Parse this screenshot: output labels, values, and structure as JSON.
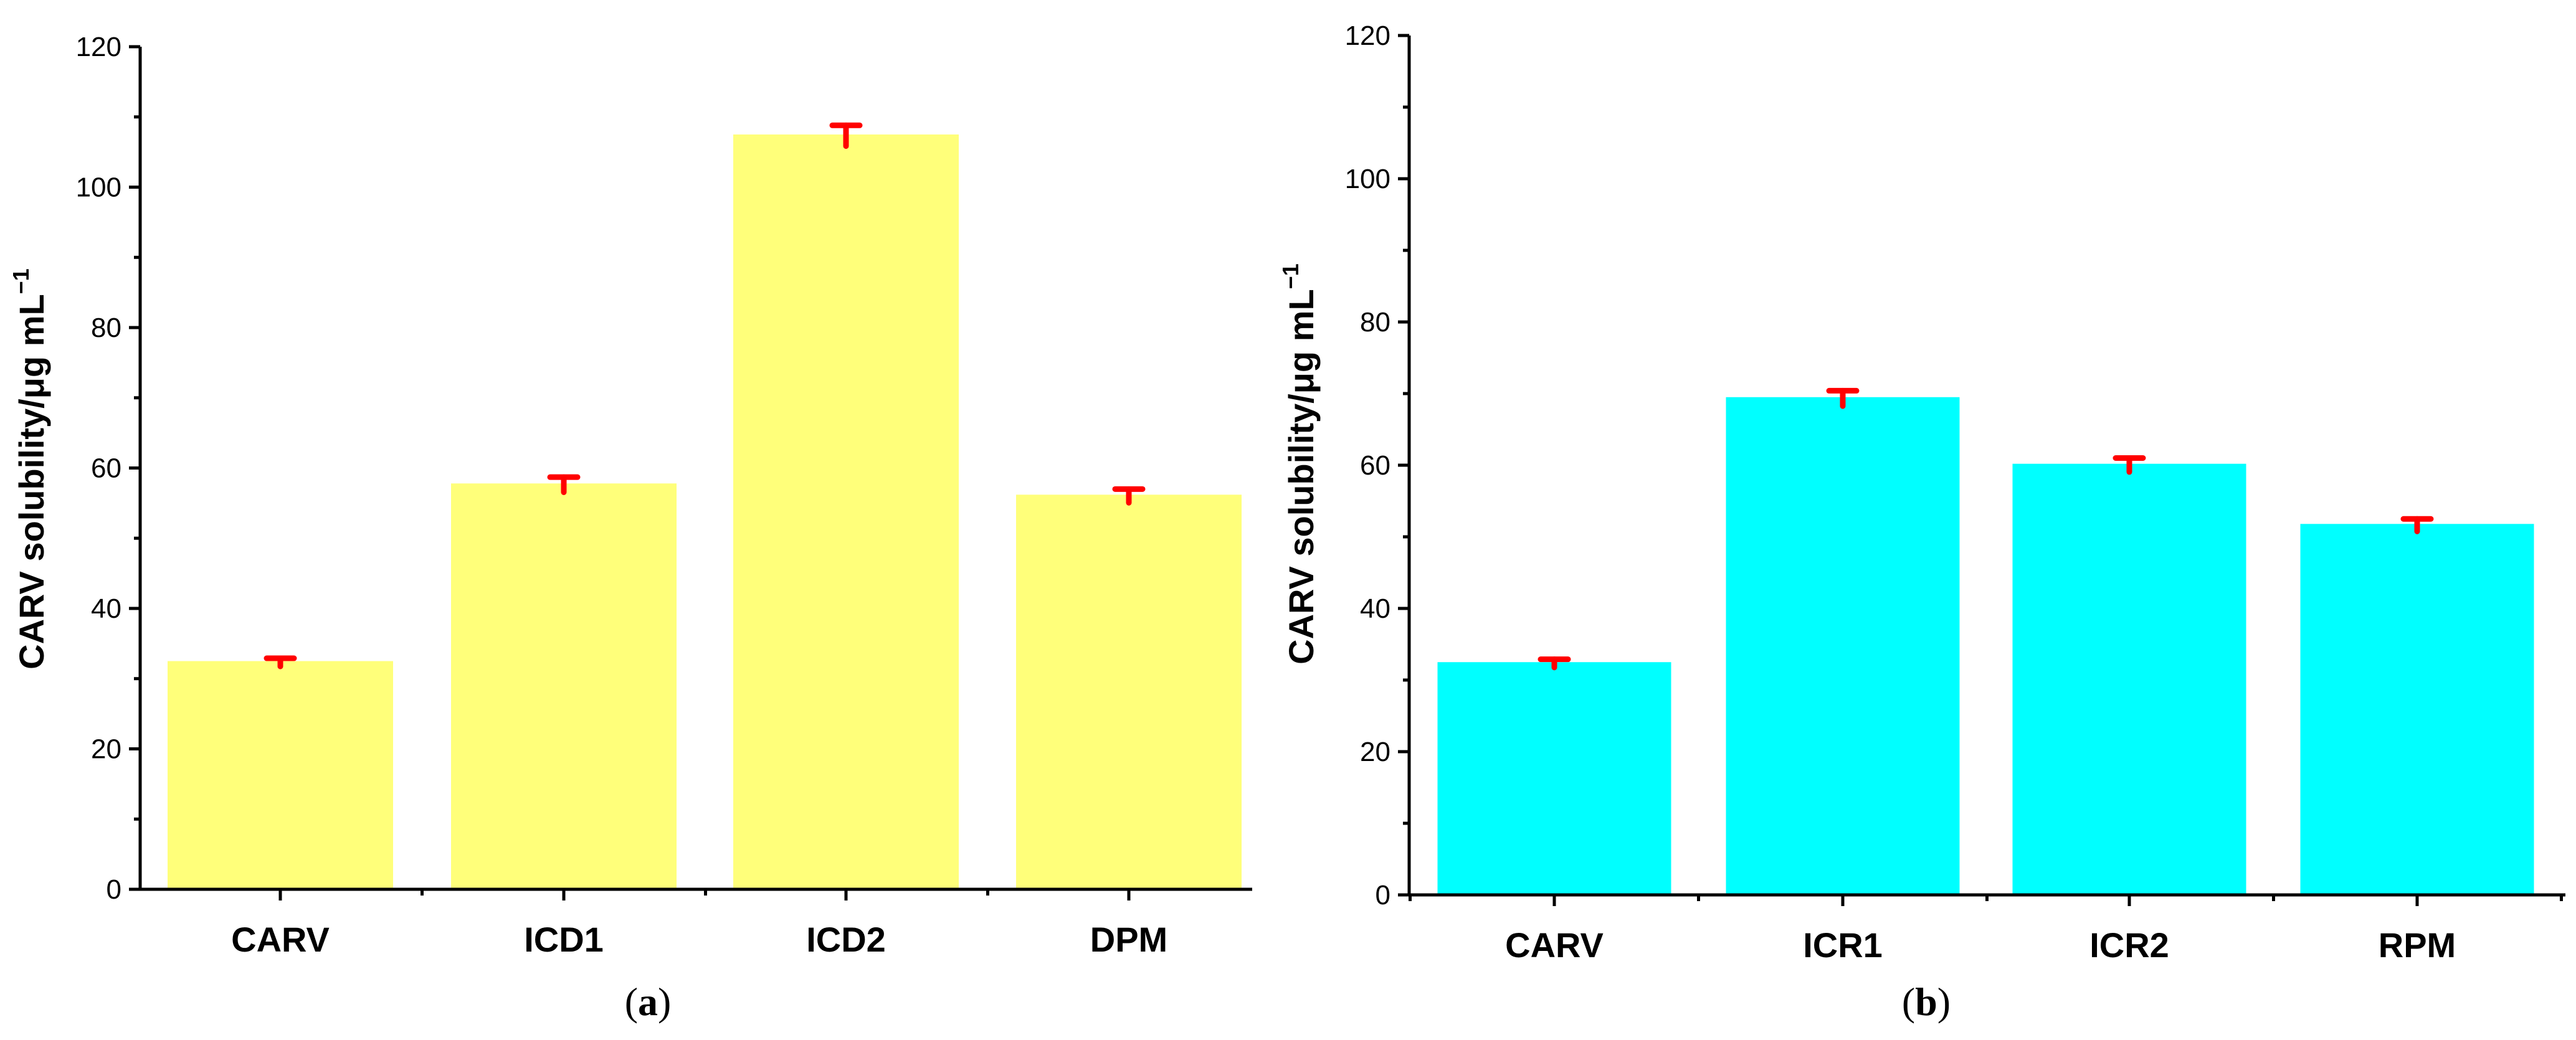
{
  "chart_data": [
    {
      "type": "bar",
      "panel_label": "a",
      "categories": [
        "CARV",
        "ICD1",
        "ICD2",
        "DPM"
      ],
      "values": [
        32.5,
        57.8,
        107.5,
        56.2
      ],
      "errors": [
        0.4,
        0.9,
        1.3,
        0.8
      ],
      "ylabel": "CARV solubility/μg mL",
      "ylabel_superscript": "−1",
      "xlabel": "",
      "ylim": [
        0,
        120
      ],
      "yticks": [
        0,
        20,
        40,
        60,
        80,
        100,
        120
      ],
      "bar_color": "#ffff7a",
      "error_color": "#ff0000",
      "grid": false
    },
    {
      "type": "bar",
      "panel_label": "b",
      "categories": [
        "CARV",
        "ICR1",
        "ICR2",
        "RPM"
      ],
      "values": [
        32.5,
        69.5,
        60.2,
        51.8
      ],
      "errors": [
        0.4,
        0.9,
        0.8,
        0.7
      ],
      "ylabel": "CARV solubility/μg mL",
      "ylabel_superscript": "−1",
      "xlabel": "",
      "ylim": [
        0,
        120
      ],
      "yticks": [
        0,
        20,
        40,
        60,
        80,
        100,
        120
      ],
      "bar_color": "#00ffff",
      "error_color": "#ff0000",
      "grid": false
    }
  ]
}
